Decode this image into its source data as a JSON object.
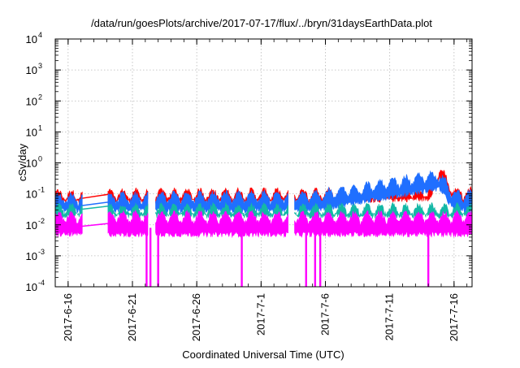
{
  "chart_data": {
    "type": "line",
    "title": "/data/run/goesPlots/archive/2017-07-17/flux/../bryn/31daysEarthData.plot",
    "xlabel": "Coordinated Universal Time (UTC)",
    "ylabel": "cSv/day",
    "yscale": "log",
    "ylim": [
      0.0001,
      10000
    ],
    "grid": true,
    "legend": "none",
    "x_start": "2017-06-15",
    "xlim_days": [
      0,
      32.4
    ],
    "x_ticks": [
      {
        "label": "2017-6-16",
        "day": 1
      },
      {
        "label": "2017-6-21",
        "day": 6
      },
      {
        "label": "2017-6-26",
        "day": 11
      },
      {
        "label": "2017-7-1",
        "day": 16
      },
      {
        "label": "2017-7-6",
        "day": 21
      },
      {
        "label": "2017-7-11",
        "day": 26
      },
      {
        "label": "2017-7-16",
        "day": 31
      }
    ],
    "y_ticks": [
      {
        "base": "10",
        "exp": "-4",
        "value": 0.0001
      },
      {
        "base": "10",
        "exp": "-3",
        "value": 0.001
      },
      {
        "base": "10",
        "exp": "-2",
        "value": 0.01
      },
      {
        "base": "10",
        "exp": "-1",
        "value": 0.1
      },
      {
        "base": "10",
        "exp": "0",
        "value": 1
      },
      {
        "base": "10",
        "exp": "1",
        "value": 10
      },
      {
        "base": "10",
        "exp": "2",
        "value": 100
      },
      {
        "base": "10",
        "exp": "3",
        "value": 1000
      },
      {
        "base": "10",
        "exp": "4",
        "value": 10000
      }
    ],
    "data_segments": [
      [
        0,
        2.1
      ],
      [
        4.1,
        7.2
      ],
      [
        7.8,
        18.1
      ],
      [
        18.6,
        32.4
      ]
    ],
    "dropouts": [
      7.1,
      7.4,
      8.0,
      14.5,
      19.5,
      20.2,
      20.6,
      29.0
    ],
    "series": [
      {
        "color": "#ff0000",
        "values": [
          {
            "day": 1,
            "lo": 0.06,
            "hi": 0.1
          },
          {
            "day": 10,
            "lo": 0.06,
            "hi": 0.11
          },
          {
            "day": 20,
            "lo": 0.06,
            "hi": 0.11
          },
          {
            "day": 29,
            "lo": 0.07,
            "hi": 0.12
          },
          {
            "day": 29.9,
            "lo": 0.3,
            "hi": 0.7
          },
          {
            "day": 31,
            "lo": 0.06,
            "hi": 0.12
          }
        ]
      },
      {
        "color": "#1f6fff",
        "values": [
          {
            "day": 1,
            "lo": 0.03,
            "hi": 0.08
          },
          {
            "day": 10,
            "lo": 0.03,
            "hi": 0.09
          },
          {
            "day": 20,
            "lo": 0.03,
            "hi": 0.09
          },
          {
            "day": 29.9,
            "lo": 0.15,
            "hi": 0.45
          },
          {
            "day": 31,
            "lo": 0.03,
            "hi": 0.1
          }
        ]
      },
      {
        "color": "#14b8a6",
        "values": [
          {
            "day": 1,
            "lo": 0.02,
            "hi": 0.035
          },
          {
            "day": 15,
            "lo": 0.02,
            "hi": 0.035
          },
          {
            "day": 31,
            "lo": 0.02,
            "hi": 0.035
          }
        ]
      },
      {
        "color": "#ff00ff",
        "values": [
          {
            "day": 1,
            "lo": 0.005,
            "hi": 0.02
          },
          {
            "day": 15,
            "lo": 0.005,
            "hi": 0.02
          },
          {
            "day": 31,
            "lo": 0.005,
            "hi": 0.02
          }
        ]
      }
    ]
  }
}
